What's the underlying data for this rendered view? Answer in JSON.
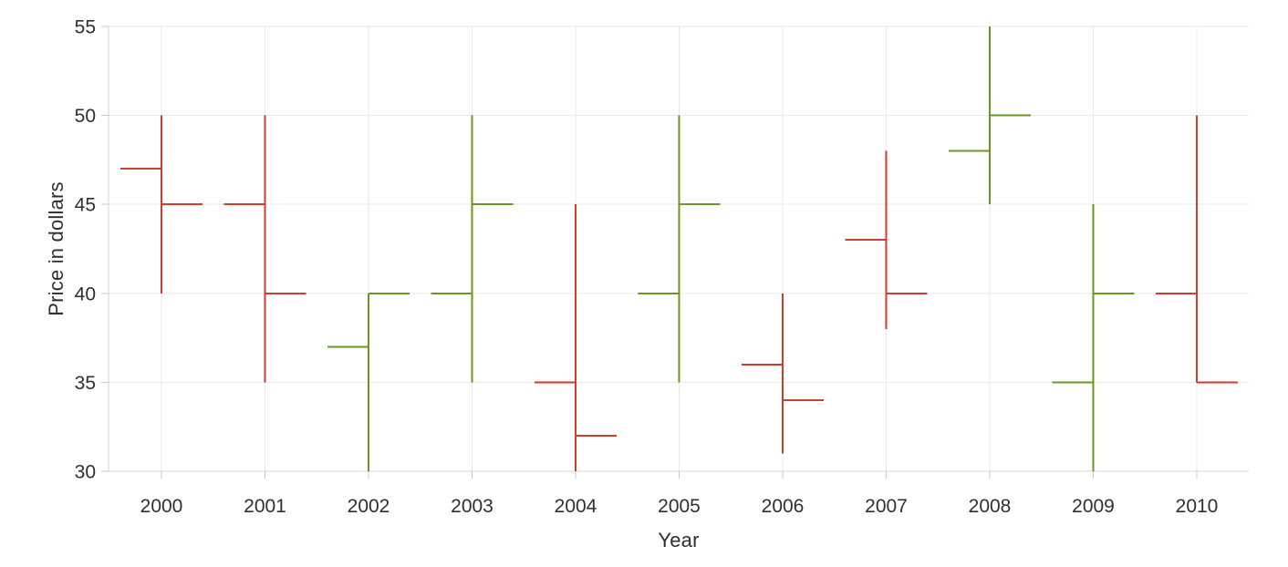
{
  "figure": {
    "kind": "ohlc-price-chart",
    "background": "#ffffff"
  },
  "chart_data": {
    "type": "ohlc",
    "title": "",
    "xlabel": "Year",
    "ylabel": "Price in dollars",
    "x": [
      2000,
      2001,
      2002,
      2003,
      2004,
      2005,
      2006,
      2007,
      2008,
      2009,
      2010
    ],
    "x_tick_labels": [
      "2000",
      "2001",
      "2002",
      "2003",
      "2004",
      "2005",
      "2006",
      "2007",
      "2008",
      "2009",
      "2010"
    ],
    "open": [
      47,
      45,
      37,
      40,
      35,
      40,
      36,
      43,
      48,
      35,
      40
    ],
    "high": [
      50,
      50,
      40,
      50,
      45,
      50,
      40,
      48,
      55,
      45,
      50
    ],
    "low": [
      40,
      35,
      30,
      35,
      30,
      35,
      31,
      38,
      45,
      30,
      35
    ],
    "close": [
      45,
      40,
      40,
      45,
      32,
      45,
      34,
      40,
      50,
      40,
      35
    ],
    "directions": [
      "down",
      "down",
      "up",
      "up",
      "down",
      "up",
      "down",
      "down",
      "up",
      "up",
      "down"
    ],
    "ylim": [
      30,
      55
    ],
    "yticks": [
      30,
      35,
      40,
      45,
      50,
      55
    ],
    "ytick_labels": [
      "30",
      "35",
      "40",
      "45",
      "50",
      "55"
    ],
    "grid": true,
    "legend": "none",
    "colors": {
      "increasing": "#6a9720",
      "decreasing": "#d23c2c",
      "grid": "#e9e9e9",
      "axis_line": "#d6d6d6",
      "tick_mark": "#c8c8c8",
      "tick_text": "#2f2f2f"
    }
  }
}
